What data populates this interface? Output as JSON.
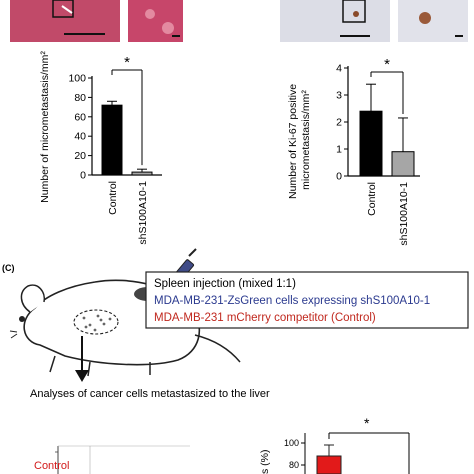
{
  "panel_c": {
    "label": "(C)",
    "box_title": "Spleen injection (mixed 1:1)",
    "line_blue": "MDA-MB-231-ZsGreen cells expressing shS100A10-1",
    "line_red": "MDA-MB-231 mCherry competitor (Control)",
    "analysis_caption": "Analyses of cancer cells metastasized to the liver",
    "flow_label": "Control",
    "partial_axis_label": "s (%)",
    "partial_ticks": [
      "100",
      "80"
    ],
    "significance": "*"
  },
  "colors": {
    "blue_text": "#2b3a8f",
    "red_text": "#c0281e",
    "bar_gray": "#a6a6a6",
    "bar_red": "#e21a1a"
  },
  "chart_data": [
    {
      "type": "bar",
      "categories": [
        "Control",
        "shS100A10-1"
      ],
      "values": [
        72,
        3
      ],
      "errors": [
        4,
        3
      ],
      "ylabel": "Number of micrometastasis/mm²",
      "ylim": [
        0,
        100
      ],
      "yticks": [
        0,
        20,
        40,
        60,
        80,
        100
      ],
      "significance": "*"
    },
    {
      "type": "bar",
      "categories": [
        "Control",
        "shS100A10-1"
      ],
      "values": [
        2.4,
        0.9
      ],
      "errors": [
        1.0,
        1.25
      ],
      "ylabel": "Number of Ki-67 positive micrometastasis/mm²",
      "ylim": [
        0,
        4
      ],
      "yticks": [
        0,
        1,
        2,
        3,
        4
      ],
      "significance": "*"
    }
  ]
}
